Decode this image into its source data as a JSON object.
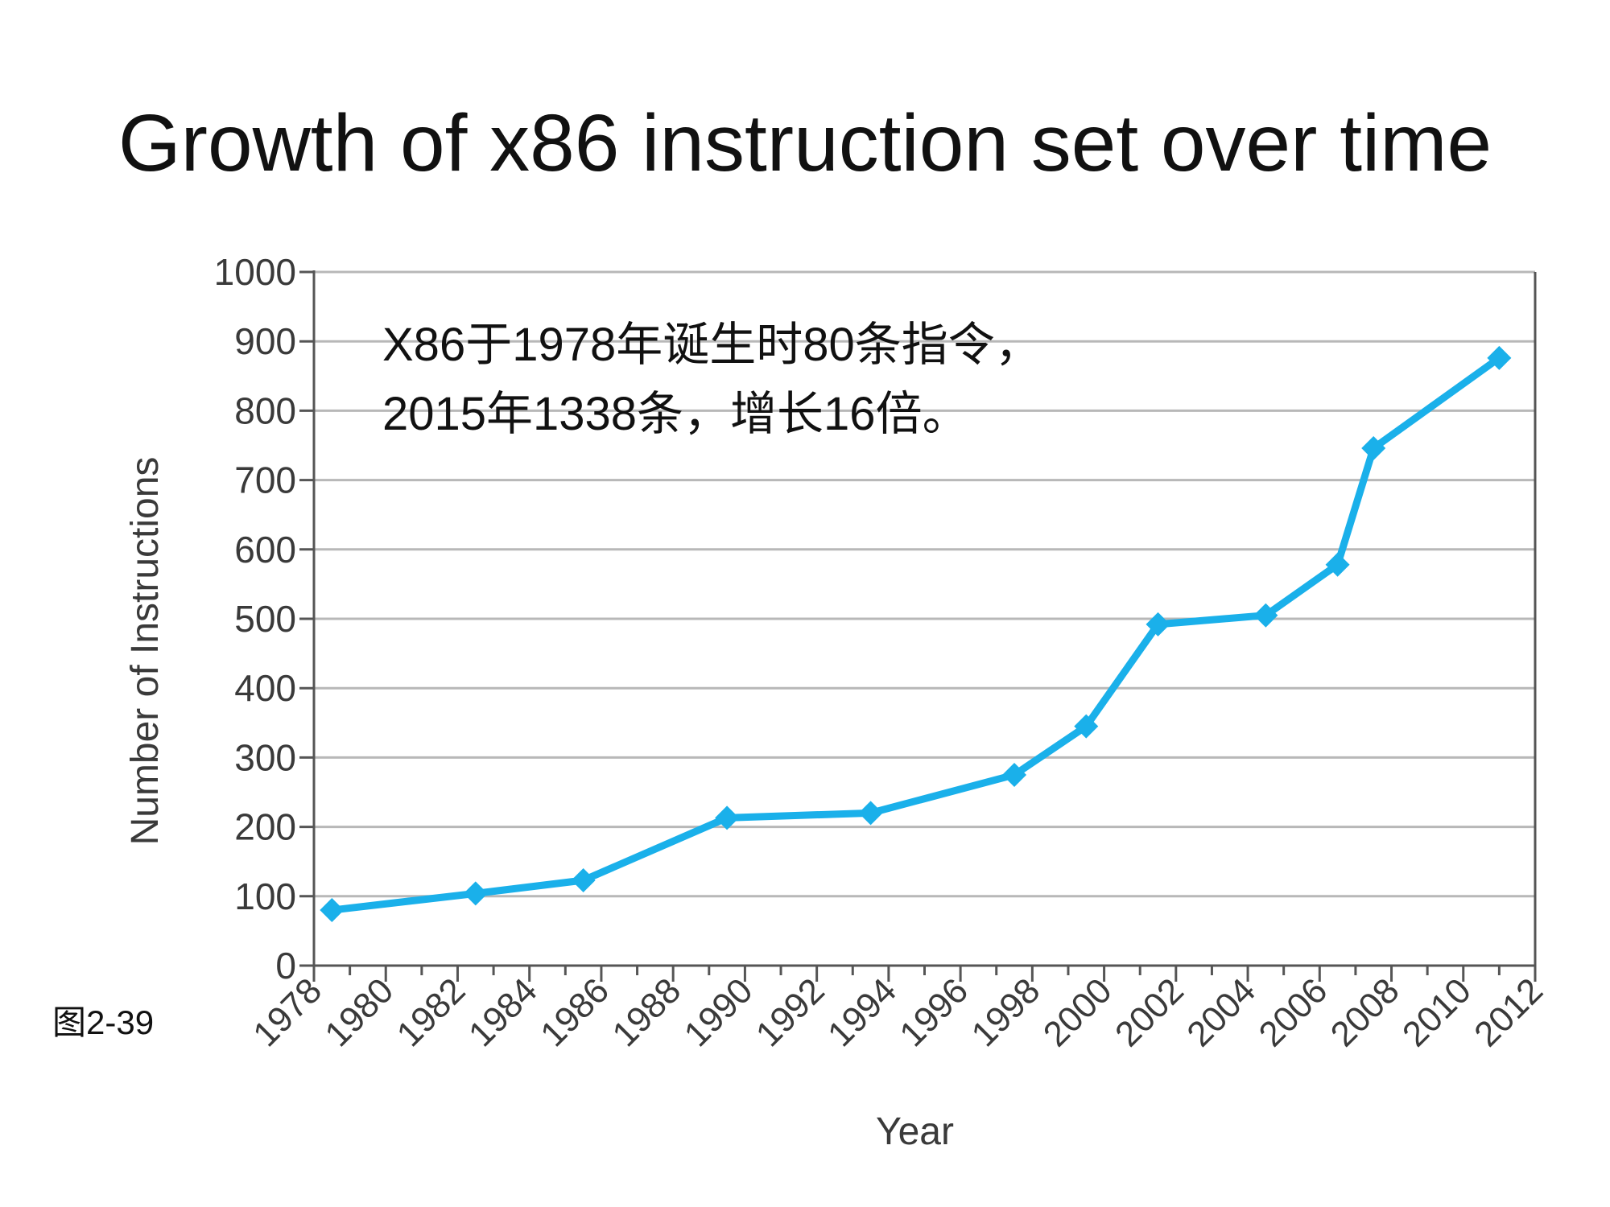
{
  "slide": {
    "title": "Growth of x86 instruction set over time",
    "figure_label": "图2-39"
  },
  "colors": {
    "series": "#1ab0ea",
    "grid": "#b8b8b8",
    "axis": "#555555",
    "text": "#111111",
    "tick_text": "#3a3a3a"
  },
  "chart_data": {
    "type": "line",
    "title": "",
    "xlabel": "Year",
    "ylabel": "Number of Instructions",
    "xlim": [
      1978,
      2012
    ],
    "ylim": [
      0,
      1000
    ],
    "x_ticks": [
      "1978",
      "1980",
      "1982",
      "1984",
      "1986",
      "1988",
      "1990",
      "1992",
      "1994",
      "1996",
      "1998",
      "2000",
      "2002",
      "2004",
      "2006",
      "2008",
      "2010",
      "2012"
    ],
    "y_ticks": [
      "0",
      "100",
      "200",
      "300",
      "400",
      "500",
      "600",
      "700",
      "800",
      "900",
      "1000"
    ],
    "grid": "horizontal",
    "legend": "none",
    "series": [
      {
        "x": [
          1978.5,
          1982.5,
          1985.5,
          1989.5,
          1993.5,
          1997.5,
          1999.5,
          2001.5,
          2004.5,
          2006.5,
          2007.5,
          2011
        ],
        "values": [
          80,
          104,
          123,
          213,
          220,
          275,
          345,
          492,
          505,
          578,
          746,
          876
        ]
      }
    ],
    "annotations": [
      {
        "lines": [
          "X86于1978年诞生时80条指令，",
          "2015年1338条，增长16倍。"
        ]
      }
    ]
  }
}
